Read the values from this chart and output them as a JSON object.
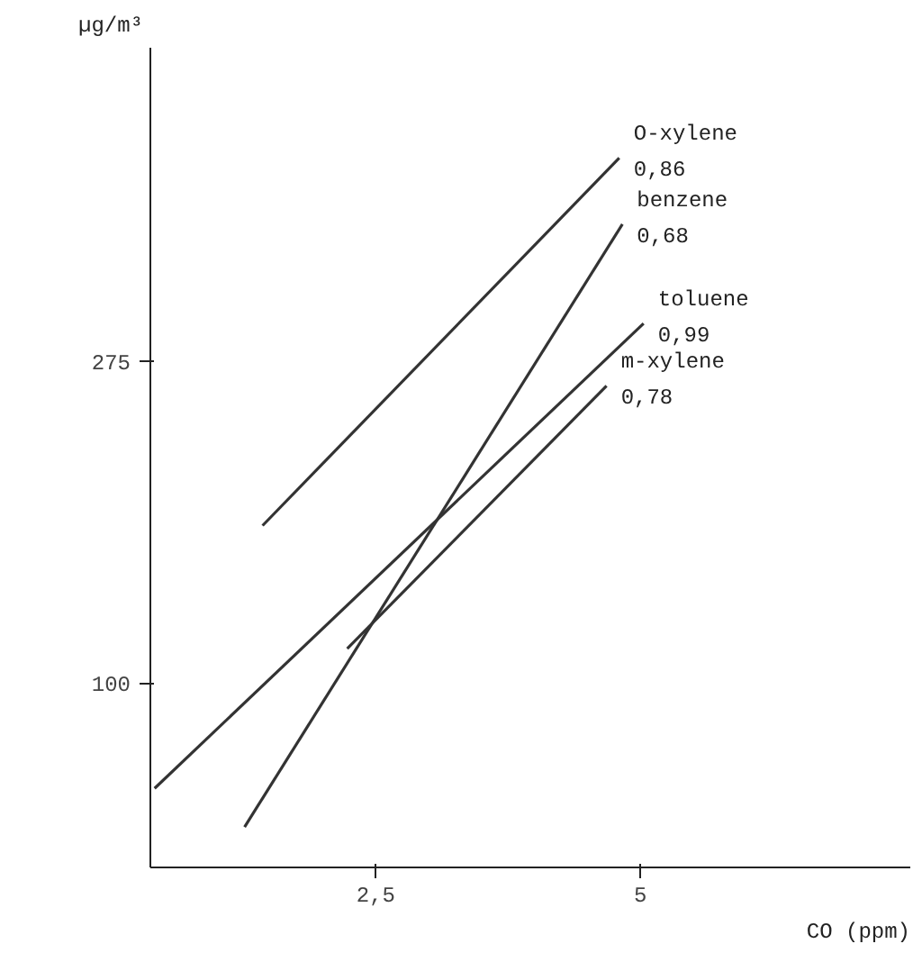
{
  "chart_data": {
    "type": "line",
    "xlabel": "CO (ppm)",
    "ylabel": "µg/m³",
    "xlim": [
      0.37,
      7.55
    ],
    "ylim": [
      0,
      446
    ],
    "xticks": [
      {
        "value": 2.5,
        "label": "2,5"
      },
      5
    ],
    "yticks": [
      100,
      275
    ],
    "grid": false,
    "marker": "none",
    "line_style": "solid",
    "series": [
      {
        "name": "O-xylene",
        "color": "#333333",
        "x": [
          1.43,
          4.8
        ],
        "values": [
          186,
          386
        ]
      },
      {
        "name": "benzene",
        "color": "#333333",
        "x": [
          1.26,
          4.83
        ],
        "values": [
          22,
          350
        ]
      },
      {
        "name": "toluene",
        "color": "#333333",
        "x": [
          0.41,
          5.03
        ],
        "values": [
          43,
          296
        ]
      },
      {
        "name": "m-xylene",
        "color": "#333333",
        "x": [
          2.23,
          4.68
        ],
        "values": [
          119,
          262
        ]
      }
    ],
    "annotations": [
      "0,86",
      "0,68",
      "0,99",
      "0,78"
    ]
  }
}
